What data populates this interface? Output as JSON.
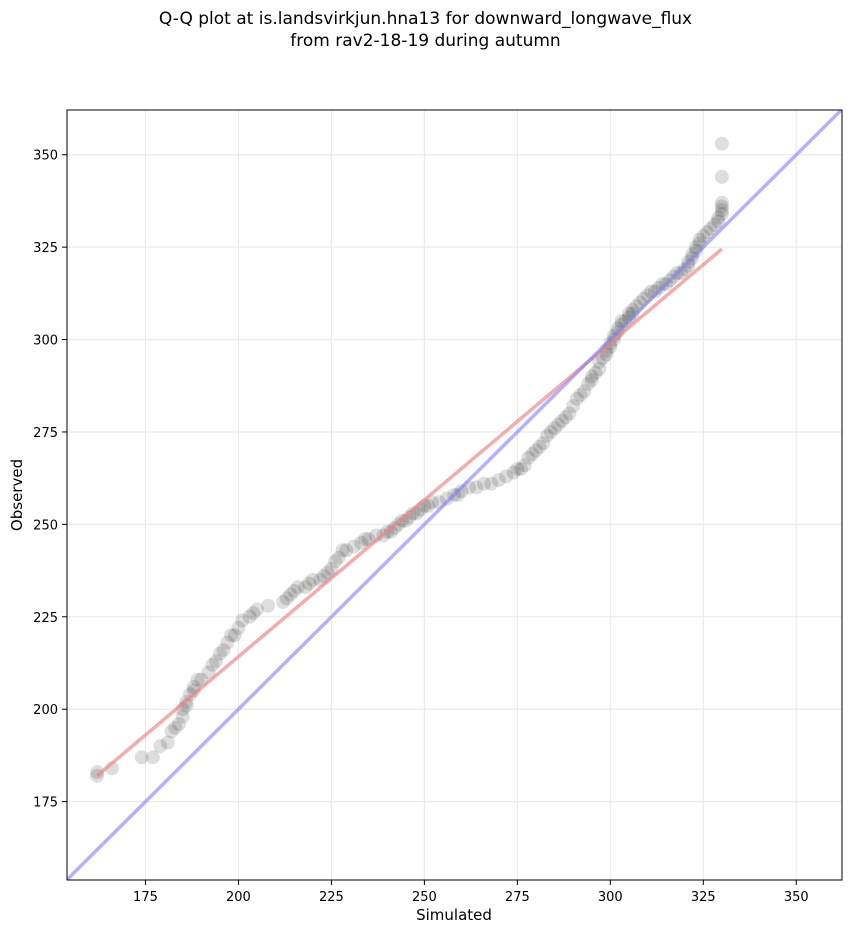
{
  "chart_data": {
    "type": "scatter",
    "title_line1": "Q-Q plot at is.landsvirkjun.hna13 for downward_longwave_flux",
    "title_line2": "from rav2-18-19 during autumn",
    "xlabel": "Simulated",
    "ylabel": "Observed",
    "xlim": [
      153.9,
      362.3
    ],
    "ylim": [
      153.8,
      362.1
    ],
    "xticks": [
      175,
      200,
      225,
      250,
      275,
      300,
      325,
      350
    ],
    "yticks": [
      175,
      200,
      225,
      250,
      275,
      300,
      325,
      350
    ],
    "xtick_labels": [
      "175",
      "200",
      "225",
      "250",
      "275",
      "300",
      "325",
      "350"
    ],
    "ytick_labels": [
      "175",
      "200",
      "225",
      "250",
      "275",
      "300",
      "325",
      "350"
    ],
    "grid": true,
    "legend": "none",
    "colors": {
      "points": "#000000",
      "fit_line": "#f08080",
      "identity_line": "#7f7fff",
      "grid": "#ebebeb"
    },
    "series": [
      {
        "name": "quantiles",
        "kind": "scatter",
        "points": [
          [
            162,
            182
          ],
          [
            162,
            183
          ],
          [
            166,
            184
          ],
          [
            174,
            187
          ],
          [
            177,
            187
          ],
          [
            179,
            190
          ],
          [
            181,
            191
          ],
          [
            182,
            194
          ],
          [
            183,
            195
          ],
          [
            184,
            196
          ],
          [
            185,
            198
          ],
          [
            185,
            200
          ],
          [
            186,
            201
          ],
          [
            186,
            202
          ],
          [
            187,
            204
          ],
          [
            188,
            205
          ],
          [
            188,
            206
          ],
          [
            189,
            208
          ],
          [
            190,
            208
          ],
          [
            192,
            210
          ],
          [
            193,
            212
          ],
          [
            194,
            213
          ],
          [
            195,
            215
          ],
          [
            196,
            216
          ],
          [
            197,
            218
          ],
          [
            198,
            220
          ],
          [
            199,
            220
          ],
          [
            200,
            222
          ],
          [
            201,
            224
          ],
          [
            203,
            225
          ],
          [
            204,
            226
          ],
          [
            205,
            227
          ],
          [
            208,
            228
          ],
          [
            212,
            229
          ],
          [
            213,
            230
          ],
          [
            214,
            231
          ],
          [
            215,
            232
          ],
          [
            216,
            233
          ],
          [
            218,
            233
          ],
          [
            219,
            234
          ],
          [
            220,
            235
          ],
          [
            222,
            235
          ],
          [
            223,
            236
          ],
          [
            224,
            237
          ],
          [
            225,
            238
          ],
          [
            226,
            240
          ],
          [
            227,
            241
          ],
          [
            228,
            243
          ],
          [
            229,
            243
          ],
          [
            231,
            244
          ],
          [
            233,
            245
          ],
          [
            234,
            246
          ],
          [
            235,
            246
          ],
          [
            237,
            247
          ],
          [
            239,
            247
          ],
          [
            240,
            248
          ],
          [
            241,
            248
          ],
          [
            242,
            249
          ],
          [
            243,
            250
          ],
          [
            244,
            251
          ],
          [
            245,
            251
          ],
          [
            246,
            252
          ],
          [
            247,
            253
          ],
          [
            248,
            253
          ],
          [
            249,
            254
          ],
          [
            250,
            255
          ],
          [
            251,
            255
          ],
          [
            252,
            256
          ],
          [
            254,
            256
          ],
          [
            256,
            257
          ],
          [
            258,
            258
          ],
          [
            259,
            258
          ],
          [
            260,
            259
          ],
          [
            262,
            260
          ],
          [
            264,
            260
          ],
          [
            266,
            261
          ],
          [
            268,
            261
          ],
          [
            270,
            262
          ],
          [
            272,
            263
          ],
          [
            274,
            264
          ],
          [
            275,
            265
          ],
          [
            276,
            265
          ],
          [
            277,
            266
          ],
          [
            278,
            268
          ],
          [
            279,
            269
          ],
          [
            280,
            270
          ],
          [
            281,
            271
          ],
          [
            282,
            272
          ],
          [
            283,
            274
          ],
          [
            284,
            275
          ],
          [
            285,
            276
          ],
          [
            286,
            277
          ],
          [
            287,
            278
          ],
          [
            288,
            279
          ],
          [
            289,
            280
          ],
          [
            290,
            282
          ],
          [
            291,
            284
          ],
          [
            292,
            285
          ],
          [
            293,
            286
          ],
          [
            294,
            288
          ],
          [
            295,
            289
          ],
          [
            295,
            290
          ],
          [
            296,
            291
          ],
          [
            297,
            292
          ],
          [
            297,
            294
          ],
          [
            298,
            295
          ],
          [
            299,
            296
          ],
          [
            299,
            297
          ],
          [
            300,
            298
          ],
          [
            300,
            299
          ],
          [
            301,
            300
          ],
          [
            301,
            301
          ],
          [
            302,
            302
          ],
          [
            302,
            303
          ],
          [
            303,
            304
          ],
          [
            303,
            305
          ],
          [
            304,
            305
          ],
          [
            305,
            306
          ],
          [
            305,
            307
          ],
          [
            306,
            307
          ],
          [
            306,
            308
          ],
          [
            307,
            309
          ],
          [
            308,
            310
          ],
          [
            309,
            311
          ],
          [
            310,
            312
          ],
          [
            311,
            313
          ],
          [
            312,
            313
          ],
          [
            313,
            314
          ],
          [
            314,
            315
          ],
          [
            315,
            315
          ],
          [
            316,
            316
          ],
          [
            317,
            317
          ],
          [
            318,
            318
          ],
          [
            319,
            318
          ],
          [
            320,
            319
          ],
          [
            321,
            320
          ],
          [
            321,
            321
          ],
          [
            322,
            322
          ],
          [
            322,
            323
          ],
          [
            323,
            324
          ],
          [
            323,
            325
          ],
          [
            324,
            326
          ],
          [
            324,
            327
          ],
          [
            325,
            328
          ],
          [
            326,
            329
          ],
          [
            327,
            330
          ],
          [
            328,
            331
          ],
          [
            329,
            332
          ],
          [
            329,
            333
          ],
          [
            330,
            334
          ],
          [
            330,
            335
          ],
          [
            330,
            336
          ],
          [
            330,
            337
          ],
          [
            330,
            344
          ],
          [
            330,
            353
          ]
        ]
      },
      {
        "name": "fit",
        "kind": "line",
        "points": [
          [
            162,
            182
          ],
          [
            330,
            324.5
          ]
        ]
      },
      {
        "name": "identity",
        "kind": "line",
        "points": [
          [
            153.9,
            153.9
          ],
          [
            362.3,
            362.3
          ]
        ]
      }
    ]
  }
}
